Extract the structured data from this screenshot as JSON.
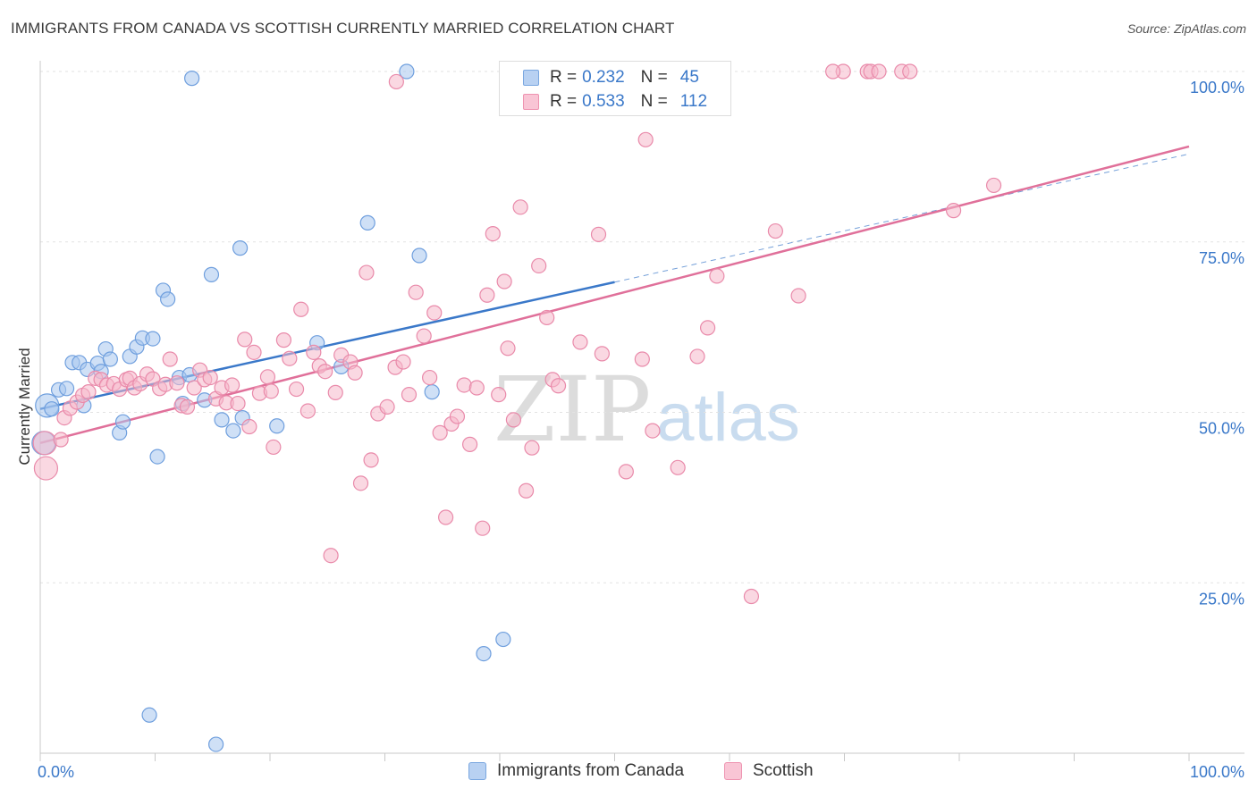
{
  "title": "IMMIGRANTS FROM CANADA VS SCOTTISH CURRENTLY MARRIED CORRELATION CHART",
  "source": "Source: ZipAtlas.com",
  "watermark": {
    "part1": "ZIP",
    "part2": "atlas"
  },
  "legend": {
    "rows": [
      {
        "r_label": "R =",
        "r_value": "0.232",
        "n_label": "N =",
        "n_value": "45",
        "fill": "#b8d1f2",
        "stroke": "#7aa7e0"
      },
      {
        "r_label": "R =",
        "r_value": "0.533",
        "n_label": "N =",
        "n_value": "112",
        "fill": "#f9c5d5",
        "stroke": "#ee93b0"
      }
    ]
  },
  "bottom_legend": [
    {
      "label": "Immigrants from Canada",
      "fill": "#b8d1f2",
      "stroke": "#7aa7e0"
    },
    {
      "label": "Scottish",
      "fill": "#f9c5d5",
      "stroke": "#ee93b0"
    }
  ],
  "chart_data": {
    "type": "scatter",
    "title": "IMMIGRANTS FROM CANADA VS SCOTTISH CURRENTLY MARRIED CORRELATION CHART",
    "xlabel": "",
    "ylabel": "Currently Married",
    "xlim": [
      0,
      100
    ],
    "ylim": [
      0,
      100
    ],
    "x_tick_labels": [
      "0.0%",
      "100.0%"
    ],
    "y_ticks": [
      {
        "value": 100,
        "label": "100.0%"
      },
      {
        "value": 75,
        "label": "75.0%"
      },
      {
        "value": 50,
        "label": "50.0%"
      },
      {
        "value": 25,
        "label": "25.0%"
      }
    ],
    "grid": true,
    "legend_position": "top-center",
    "colors": {
      "canada": "#3a78c9",
      "scottish": "#e0709a"
    },
    "series": [
      {
        "name": "Immigrants from Canada",
        "color": "#a8c7ef",
        "stroke": "#6f9fde",
        "trend": {
          "x0": 0,
          "y0": 50.5,
          "x1": 50,
          "y1": 69.1,
          "dashed_to_x": 100,
          "dashed_to_y": 87.9
        },
        "points": [
          [
            0.3,
            45.5
          ],
          [
            0.6,
            51.0
          ],
          [
            1.0,
            50.5
          ],
          [
            1.6,
            53.3
          ],
          [
            2.3,
            53.5
          ],
          [
            2.8,
            57.3
          ],
          [
            3.4,
            57.3
          ],
          [
            3.8,
            51.0
          ],
          [
            4.1,
            56.3
          ],
          [
            5.0,
            57.2
          ],
          [
            5.3,
            56.0
          ],
          [
            5.7,
            59.3
          ],
          [
            6.1,
            57.8
          ],
          [
            6.9,
            47.0
          ],
          [
            7.2,
            48.6
          ],
          [
            7.8,
            58.2
          ],
          [
            8.4,
            59.6
          ],
          [
            8.9,
            60.9
          ],
          [
            9.8,
            60.8
          ],
          [
            10.2,
            43.5
          ],
          [
            10.7,
            67.9
          ],
          [
            11.1,
            66.6
          ],
          [
            12.1,
            55.1
          ],
          [
            12.4,
            51.3
          ],
          [
            13.0,
            55.5
          ],
          [
            13.2,
            99.0
          ],
          [
            14.3,
            51.8
          ],
          [
            14.9,
            70.2
          ],
          [
            15.8,
            48.9
          ],
          [
            16.8,
            47.3
          ],
          [
            17.4,
            74.1
          ],
          [
            17.6,
            49.2
          ],
          [
            20.6,
            48.0
          ],
          [
            24.1,
            60.2
          ],
          [
            26.2,
            56.7
          ],
          [
            28.5,
            77.8
          ],
          [
            31.9,
            100.0
          ],
          [
            33.0,
            73.0
          ],
          [
            34.1,
            53.0
          ],
          [
            38.6,
            14.6
          ],
          [
            40.3,
            16.7
          ],
          [
            9.5,
            5.6
          ],
          [
            15.3,
            1.3
          ],
          [
            50.0,
            100.0
          ],
          [
            48.0,
            100.0
          ]
        ]
      },
      {
        "name": "Scottish",
        "color": "#f6b8cb",
        "stroke": "#e98aaa",
        "trend": {
          "x0": 0,
          "y0": 45.5,
          "x1": 100,
          "y1": 89.0
        },
        "points": [
          [
            0.4,
            45.5
          ],
          [
            0.5,
            41.8
          ],
          [
            1.8,
            46.0
          ],
          [
            2.1,
            49.2
          ],
          [
            2.6,
            50.6
          ],
          [
            3.2,
            51.5
          ],
          [
            3.7,
            52.5
          ],
          [
            4.2,
            53.0
          ],
          [
            4.8,
            55.0
          ],
          [
            5.3,
            54.8
          ],
          [
            5.8,
            54.0
          ],
          [
            6.4,
            54.2
          ],
          [
            6.9,
            53.4
          ],
          [
            7.5,
            54.8
          ],
          [
            7.8,
            55.0
          ],
          [
            8.2,
            53.6
          ],
          [
            8.7,
            54.2
          ],
          [
            9.3,
            55.6
          ],
          [
            9.8,
            54.9
          ],
          [
            10.4,
            53.5
          ],
          [
            10.9,
            54.1
          ],
          [
            11.3,
            57.8
          ],
          [
            11.9,
            54.3
          ],
          [
            12.3,
            51.0
          ],
          [
            12.8,
            50.8
          ],
          [
            13.4,
            53.6
          ],
          [
            13.9,
            56.2
          ],
          [
            14.3,
            54.8
          ],
          [
            14.8,
            55.1
          ],
          [
            15.3,
            52.0
          ],
          [
            15.8,
            53.6
          ],
          [
            16.2,
            51.4
          ],
          [
            16.7,
            54.0
          ],
          [
            17.2,
            51.3
          ],
          [
            17.8,
            60.7
          ],
          [
            18.2,
            47.9
          ],
          [
            18.6,
            58.8
          ],
          [
            19.1,
            52.8
          ],
          [
            19.8,
            55.2
          ],
          [
            20.3,
            44.9
          ],
          [
            21.2,
            60.6
          ],
          [
            21.7,
            57.9
          ],
          [
            22.3,
            53.4
          ],
          [
            22.7,
            65.1
          ],
          [
            23.3,
            50.2
          ],
          [
            23.8,
            58.8
          ],
          [
            24.3,
            56.8
          ],
          [
            24.8,
            56.0
          ],
          [
            25.3,
            29.0
          ],
          [
            25.7,
            52.9
          ],
          [
            26.2,
            58.4
          ],
          [
            27.0,
            57.4
          ],
          [
            27.4,
            55.8
          ],
          [
            27.9,
            39.6
          ],
          [
            28.4,
            70.5
          ],
          [
            28.8,
            43.0
          ],
          [
            29.4,
            49.8
          ],
          [
            30.2,
            50.8
          ],
          [
            30.9,
            56.6
          ],
          [
            31.6,
            57.4
          ],
          [
            32.1,
            52.6
          ],
          [
            32.7,
            67.6
          ],
          [
            33.4,
            61.2
          ],
          [
            33.9,
            55.1
          ],
          [
            34.3,
            64.6
          ],
          [
            34.8,
            47.0
          ],
          [
            35.3,
            34.6
          ],
          [
            35.8,
            48.3
          ],
          [
            36.3,
            49.4
          ],
          [
            36.9,
            54.0
          ],
          [
            37.4,
            45.3
          ],
          [
            38.0,
            53.6
          ],
          [
            38.5,
            33.0
          ],
          [
            38.9,
            67.2
          ],
          [
            39.4,
            76.2
          ],
          [
            39.9,
            52.6
          ],
          [
            40.4,
            69.2
          ],
          [
            40.7,
            59.4
          ],
          [
            41.2,
            48.9
          ],
          [
            41.8,
            80.1
          ],
          [
            42.3,
            38.5
          ],
          [
            42.8,
            44.8
          ],
          [
            43.4,
            71.5
          ],
          [
            44.1,
            63.9
          ],
          [
            44.6,
            54.8
          ],
          [
            45.1,
            53.9
          ],
          [
            47.0,
            60.3
          ],
          [
            48.6,
            76.1
          ],
          [
            48.9,
            58.6
          ],
          [
            51.0,
            41.3
          ],
          [
            52.4,
            57.8
          ],
          [
            52.7,
            90.0
          ],
          [
            53.3,
            47.3
          ],
          [
            55.5,
            41.9
          ],
          [
            57.2,
            58.2
          ],
          [
            58.1,
            62.4
          ],
          [
            58.9,
            70.0
          ],
          [
            61.9,
            23.0
          ],
          [
            64.0,
            76.6
          ],
          [
            66.0,
            67.1
          ],
          [
            69.9,
            100.0
          ],
          [
            72.0,
            100.0
          ],
          [
            72.3,
            100.0
          ],
          [
            75.0,
            100.0
          ],
          [
            75.7,
            100.0
          ],
          [
            79.5,
            79.6
          ],
          [
            83.0,
            83.3
          ],
          [
            31.0,
            98.5
          ],
          [
            55.0,
            100.0
          ],
          [
            53.0,
            100.0
          ],
          [
            69.0,
            100.0
          ],
          [
            73.0,
            100.0
          ],
          [
            20.1,
            53.1
          ]
        ]
      }
    ]
  }
}
